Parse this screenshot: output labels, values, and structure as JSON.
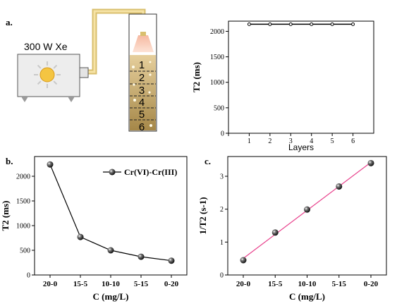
{
  "panels": {
    "a": "a.",
    "b": "b.",
    "c": "c."
  },
  "apparatus": {
    "lamp_label": "300 W Xe",
    "layers": [
      "1",
      "2",
      "3",
      "4",
      "5",
      "6"
    ]
  },
  "colors": {
    "marker": "#1a1a1a",
    "fit_line": "#e8418c",
    "sediment": "#c8a866",
    "fiber": "#f0d98a"
  },
  "chart_data": [
    {
      "id": "a",
      "type": "line",
      "xlabel": "Layers",
      "ylabel": "T2 (ms)",
      "x": [
        1,
        2,
        3,
        4,
        5,
        6
      ],
      "y": [
        2140,
        2140,
        2140,
        2140,
        2140,
        2140
      ],
      "xlim": [
        0,
        7
      ],
      "ylim": [
        0,
        2200
      ],
      "xticks": [
        "0",
        "1",
        "2",
        "3",
        "4",
        "5",
        "6"
      ],
      "yticks": [
        "0",
        "500",
        "1000",
        "1500",
        "2000"
      ]
    },
    {
      "id": "b",
      "type": "line",
      "xlabel": "C (mg/L)",
      "ylabel": "T2 (ms)",
      "categories": [
        "20-0",
        "15-5",
        "10-10",
        "5-15",
        "0-20"
      ],
      "series": [
        {
          "name": "Cr(VI)-Cr(III)",
          "values": [
            2240,
            770,
            500,
            370,
            290
          ]
        }
      ],
      "ylim": [
        0,
        2400
      ],
      "yticks": [
        "0",
        "500",
        "1000",
        "1500",
        "2000"
      ],
      "legend": "top-right"
    },
    {
      "id": "c",
      "type": "scatter",
      "xlabel": "C (mg/L)",
      "ylabel": "1/T2 (s-1)",
      "categories": [
        "20-0",
        "15-5",
        "10-10",
        "5-15",
        "0-20"
      ],
      "values": [
        0.45,
        1.29,
        1.99,
        2.69,
        3.4
      ],
      "fit_line": true,
      "ylim": [
        0,
        3.6
      ],
      "yticks": [
        "0",
        "1",
        "2",
        "3"
      ]
    }
  ]
}
